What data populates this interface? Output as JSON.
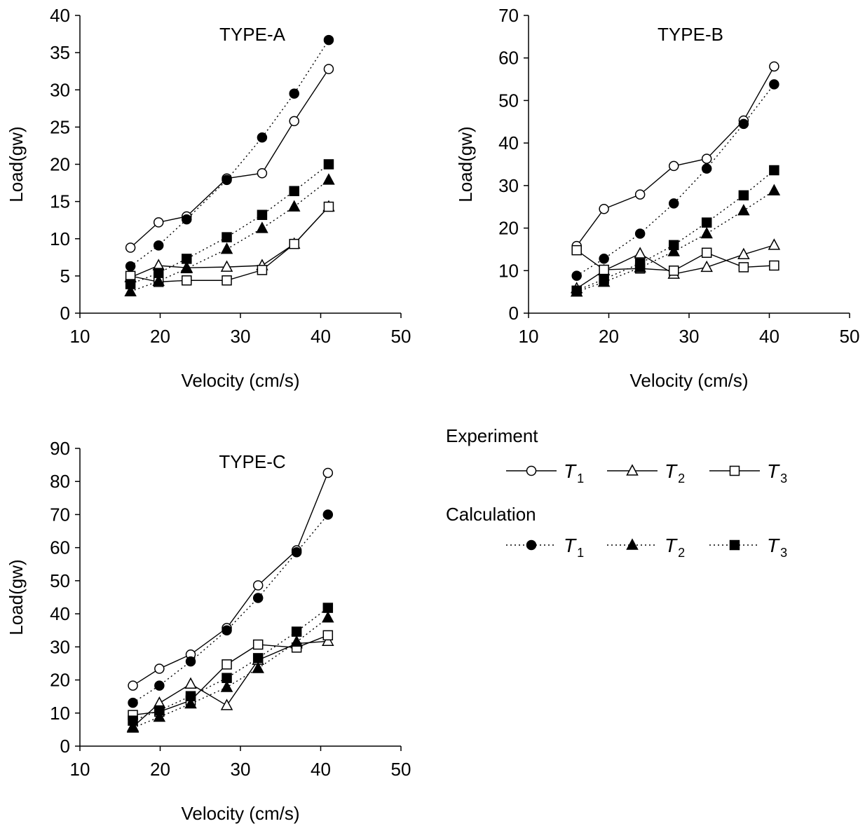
{
  "chart_data": [
    {
      "type": "line",
      "title": "TYPE-A",
      "xlabel": "Velocity (cm/s)",
      "ylabel": "Load(gw)",
      "xlim": [
        10,
        50
      ],
      "ylim": [
        0,
        40
      ],
      "xticks": [
        "10",
        "20",
        "30",
        "40",
        "50"
      ],
      "yticks": [
        "0",
        "5",
        "10",
        "15",
        "20",
        "25",
        "30",
        "35",
        "40"
      ],
      "grid": false,
      "series": [
        {
          "group": "Experiment",
          "label": "T1",
          "marker": "circle",
          "fill": "open",
          "line": "solid",
          "x": [
            16.3,
            19.8,
            23.3,
            28.3,
            32.7,
            36.7,
            41.0
          ],
          "y": [
            8.8,
            12.2,
            13.0,
            18.1,
            18.8,
            25.8,
            32.8
          ]
        },
        {
          "group": "Experiment",
          "label": "T2",
          "marker": "triangle",
          "fill": "open",
          "line": "solid",
          "x": [
            16.3,
            19.8,
            23.3,
            28.3,
            32.7,
            36.7,
            41.0
          ],
          "y": [
            4.8,
            6.4,
            6.1,
            6.2,
            6.4,
            9.3,
            14.3
          ]
        },
        {
          "group": "Experiment",
          "label": "T3",
          "marker": "square",
          "fill": "open",
          "line": "solid",
          "x": [
            16.3,
            19.8,
            23.3,
            28.3,
            32.7,
            36.7,
            41.0
          ],
          "y": [
            5.0,
            4.2,
            4.4,
            4.4,
            5.8,
            9.3,
            14.3
          ]
        },
        {
          "group": "Calculation",
          "label": "T1",
          "marker": "circle",
          "fill": "filled",
          "line": "dotted",
          "x": [
            16.3,
            19.8,
            23.3,
            28.3,
            32.7,
            36.7,
            41.0
          ],
          "y": [
            6.3,
            9.1,
            12.6,
            17.9,
            23.6,
            29.5,
            36.7
          ]
        },
        {
          "group": "Calculation",
          "label": "T2",
          "marker": "triangle",
          "fill": "filled",
          "line": "dotted",
          "x": [
            16.3,
            19.8,
            23.3,
            28.3,
            32.7,
            36.7,
            41.0
          ],
          "y": [
            2.9,
            4.3,
            6.0,
            8.6,
            11.4,
            14.3,
            17.9
          ]
        },
        {
          "group": "Calculation",
          "label": "T3",
          "marker": "square",
          "fill": "filled",
          "line": "dotted",
          "x": [
            16.3,
            19.8,
            23.3,
            28.3,
            32.7,
            36.7,
            41.0
          ],
          "y": [
            3.9,
            5.4,
            7.3,
            10.2,
            13.2,
            16.4,
            20.0
          ]
        }
      ]
    },
    {
      "type": "line",
      "title": "TYPE-B",
      "xlabel": "Velocity (cm/s)",
      "ylabel": "Load(gw)",
      "xlim": [
        10,
        50
      ],
      "ylim": [
        0,
        70
      ],
      "xticks": [
        "10",
        "20",
        "30",
        "40",
        "50"
      ],
      "yticks": [
        "0",
        "10",
        "20",
        "30",
        "40",
        "50",
        "60",
        "70"
      ],
      "grid": false,
      "series": [
        {
          "group": "Experiment",
          "label": "T1",
          "marker": "circle",
          "fill": "open",
          "line": "solid",
          "x": [
            16.0,
            19.4,
            23.9,
            28.1,
            32.2,
            36.8,
            40.6
          ],
          "y": [
            15.8,
            24.5,
            27.9,
            34.6,
            36.3,
            45.3,
            58.0
          ]
        },
        {
          "group": "Experiment",
          "label": "T2",
          "marker": "triangle",
          "fill": "open",
          "line": "solid",
          "x": [
            16.0,
            19.4,
            23.9,
            28.1,
            32.2,
            36.8,
            40.6
          ],
          "y": [
            5.8,
            10.0,
            14.0,
            9.2,
            10.8,
            13.8,
            16.0
          ]
        },
        {
          "group": "Experiment",
          "label": "T3",
          "marker": "square",
          "fill": "open",
          "line": "solid",
          "x": [
            16.0,
            19.4,
            23.9,
            28.1,
            32.2,
            36.8,
            40.6
          ],
          "y": [
            14.8,
            10.2,
            10.5,
            10.0,
            14.2,
            10.8,
            11.2
          ]
        },
        {
          "group": "Calculation",
          "label": "T1",
          "marker": "circle",
          "fill": "filled",
          "line": "dotted",
          "x": [
            16.0,
            19.4,
            23.9,
            28.1,
            32.2,
            36.8,
            40.6
          ],
          "y": [
            8.8,
            12.8,
            18.7,
            25.8,
            34.0,
            44.5,
            53.8
          ]
        },
        {
          "group": "Calculation",
          "label": "T2",
          "marker": "triangle",
          "fill": "filled",
          "line": "dotted",
          "x": [
            16.0,
            19.4,
            23.9,
            28.1,
            32.2,
            36.8,
            40.6
          ],
          "y": [
            5.0,
            7.3,
            10.7,
            14.5,
            18.7,
            24.1,
            28.8
          ]
        },
        {
          "group": "Calculation",
          "label": "T3",
          "marker": "square",
          "fill": "filled",
          "line": "dotted",
          "x": [
            16.0,
            19.4,
            23.9,
            28.1,
            32.2,
            36.8,
            40.6
          ],
          "y": [
            5.3,
            8.0,
            11.7,
            16.0,
            21.3,
            27.7,
            33.6
          ]
        }
      ]
    },
    {
      "type": "line",
      "title": "TYPE-C",
      "xlabel": "Velocity (cm/s)",
      "ylabel": "Load(gw)",
      "xlim": [
        10,
        50
      ],
      "ylim": [
        0,
        90
      ],
      "xticks": [
        "10",
        "20",
        "30",
        "40",
        "50"
      ],
      "yticks": [
        "0",
        "10",
        "20",
        "30",
        "40",
        "50",
        "60",
        "70",
        "80",
        "90"
      ],
      "grid": false,
      "series": [
        {
          "group": "Experiment",
          "label": "T1",
          "marker": "circle",
          "fill": "open",
          "line": "solid",
          "x": [
            16.6,
            19.9,
            23.8,
            28.3,
            32.2,
            37.0,
            40.9
          ],
          "y": [
            18.3,
            23.4,
            27.7,
            35.7,
            48.6,
            59.2,
            82.6
          ]
        },
        {
          "group": "Experiment",
          "label": "T2",
          "marker": "triangle",
          "fill": "open",
          "line": "solid",
          "x": [
            16.6,
            19.9,
            23.8,
            28.3,
            32.2,
            37.0,
            40.9
          ],
          "y": [
            5.8,
            13.0,
            18.8,
            12.3,
            26.0,
            31.0,
            31.7
          ]
        },
        {
          "group": "Experiment",
          "label": "T3",
          "marker": "square",
          "fill": "open",
          "line": "solid",
          "x": [
            16.6,
            19.9,
            23.8,
            28.3,
            32.2,
            37.0,
            40.9
          ],
          "y": [
            9.4,
            10.4,
            13.8,
            24.7,
            30.7,
            29.8,
            33.5
          ]
        },
        {
          "group": "Calculation",
          "label": "T1",
          "marker": "circle",
          "fill": "filled",
          "line": "dotted",
          "x": [
            16.6,
            19.9,
            23.8,
            28.3,
            32.2,
            37.0,
            40.9
          ],
          "y": [
            13.1,
            18.3,
            25.6,
            35.0,
            44.8,
            58.6,
            70.0
          ]
        },
        {
          "group": "Calculation",
          "label": "T2",
          "marker": "triangle",
          "fill": "filled",
          "line": "dotted",
          "x": [
            16.6,
            19.9,
            23.8,
            28.3,
            32.2,
            37.0,
            40.9
          ],
          "y": [
            5.5,
            8.8,
            12.8,
            17.8,
            23.5,
            31.5,
            38.8
          ]
        },
        {
          "group": "Calculation",
          "label": "T3",
          "marker": "square",
          "fill": "filled",
          "line": "dotted",
          "x": [
            16.6,
            19.9,
            23.8,
            28.3,
            32.2,
            37.0,
            40.9
          ],
          "y": [
            7.7,
            10.8,
            15.1,
            20.6,
            26.6,
            34.6,
            41.8
          ]
        }
      ]
    }
  ],
  "legend": {
    "groups": [
      {
        "heading": "Experiment",
        "fill": "open",
        "line": "solid",
        "items": [
          {
            "marker": "circle",
            "letter": "T",
            "sub": "1"
          },
          {
            "marker": "triangle",
            "letter": "T",
            "sub": "2"
          },
          {
            "marker": "square",
            "letter": "T",
            "sub": "3"
          }
        ]
      },
      {
        "heading": "Calculation",
        "fill": "filled",
        "line": "dotted",
        "items": [
          {
            "marker": "circle",
            "letter": "T",
            "sub": "1"
          },
          {
            "marker": "triangle",
            "letter": "T",
            "sub": "2"
          },
          {
            "marker": "square",
            "letter": "T",
            "sub": "3"
          }
        ]
      }
    ]
  }
}
